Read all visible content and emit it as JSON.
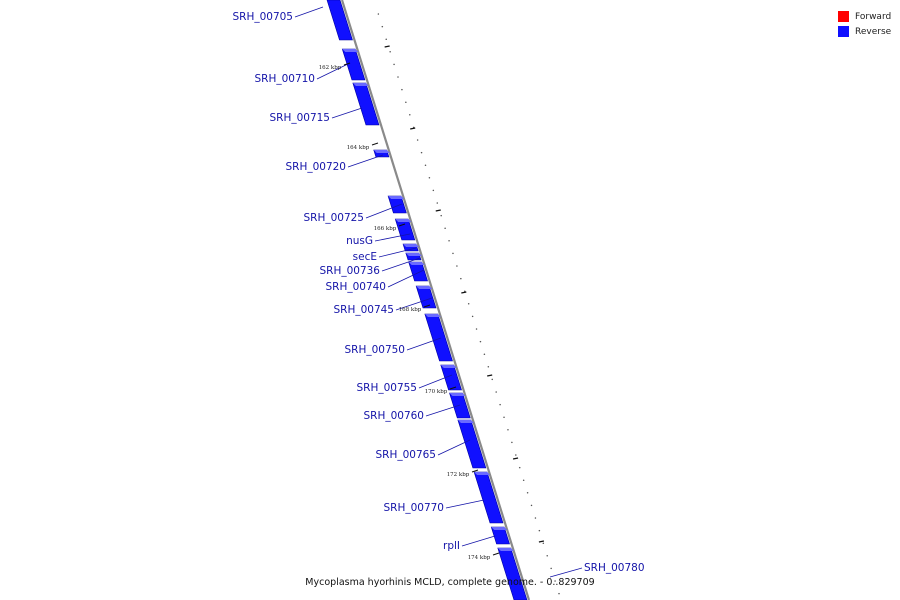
{
  "caption": "Mycoplasma hyorhinis MCLD, complete genome. - 0..829709",
  "legend": {
    "forward": {
      "label": "Forward",
      "color": "#ff0000"
    },
    "reverse": {
      "label": "Reverse",
      "color": "#1010ff"
    }
  },
  "colors": {
    "backbone": "#8a8a8a",
    "gene_fill": "#1010ff",
    "gene_edge": "#0000a0",
    "label": "#1414a8"
  },
  "kbp_marks": [
    "162 kbp",
    "164 kbp",
    "166 kbp",
    "168 kbp",
    "170 kbp",
    "172 kbp",
    "174 kbp"
  ],
  "genes": [
    {
      "name": "SRH_00705",
      "strand": "reverse"
    },
    {
      "name": "SRH_00710",
      "strand": "reverse"
    },
    {
      "name": "SRH_00715",
      "strand": "reverse"
    },
    {
      "name": "SRH_00720",
      "strand": "reverse"
    },
    {
      "name": "SRH_00725",
      "strand": "reverse"
    },
    {
      "name": "nusG",
      "strand": "reverse"
    },
    {
      "name": "secE",
      "strand": "reverse"
    },
    {
      "name": "SRH_00736",
      "strand": "reverse"
    },
    {
      "name": "SRH_00740",
      "strand": "reverse"
    },
    {
      "name": "SRH_00745",
      "strand": "reverse"
    },
    {
      "name": "SRH_00750",
      "strand": "reverse"
    },
    {
      "name": "SRH_00755",
      "strand": "reverse"
    },
    {
      "name": "SRH_00760",
      "strand": "reverse"
    },
    {
      "name": "SRH_00765",
      "strand": "reverse"
    },
    {
      "name": "SRH_00770",
      "strand": "reverse"
    },
    {
      "name": "rplI",
      "strand": "reverse"
    },
    {
      "name": "SRH_00780",
      "strand": "reverse"
    }
  ]
}
